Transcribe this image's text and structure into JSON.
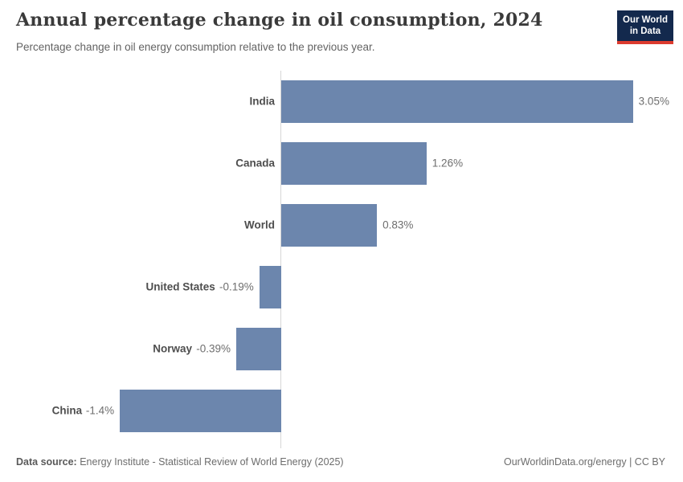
{
  "header": {
    "title": "Annual percentage change in oil consumption, 2024",
    "subtitle": "Percentage change in oil energy consumption relative to the previous year.",
    "logo": {
      "line1": "Our World",
      "line2": "in Data",
      "bg_color": "#13294d",
      "stripe_color": "#dc3b2f"
    }
  },
  "chart_data": {
    "type": "bar",
    "orientation": "horizontal",
    "title": "Annual percentage change in oil consumption, 2024",
    "subtitle": "Percentage change in oil energy consumption relative to the previous year.",
    "categories": [
      "India",
      "Canada",
      "World",
      "United States",
      "Norway",
      "China"
    ],
    "values": [
      3.05,
      1.26,
      0.83,
      -0.19,
      -0.39,
      -1.4
    ],
    "value_labels": [
      "3.05%",
      "1.26%",
      "0.83%",
      "-0.19%",
      "-0.39%",
      "-1.4%"
    ],
    "unit": "%",
    "xlim": [
      -1.5,
      3.3
    ],
    "grid": false,
    "legend": "none",
    "bar_color": "#6c86ad",
    "zero_line_color": "#d6d6d6"
  },
  "footer": {
    "datasource_label": "Data source:",
    "datasource_value": " Energy Institute - Statistical Review of World Energy (2025)",
    "attribution": "OurWorldinData.org/energy | CC BY"
  }
}
